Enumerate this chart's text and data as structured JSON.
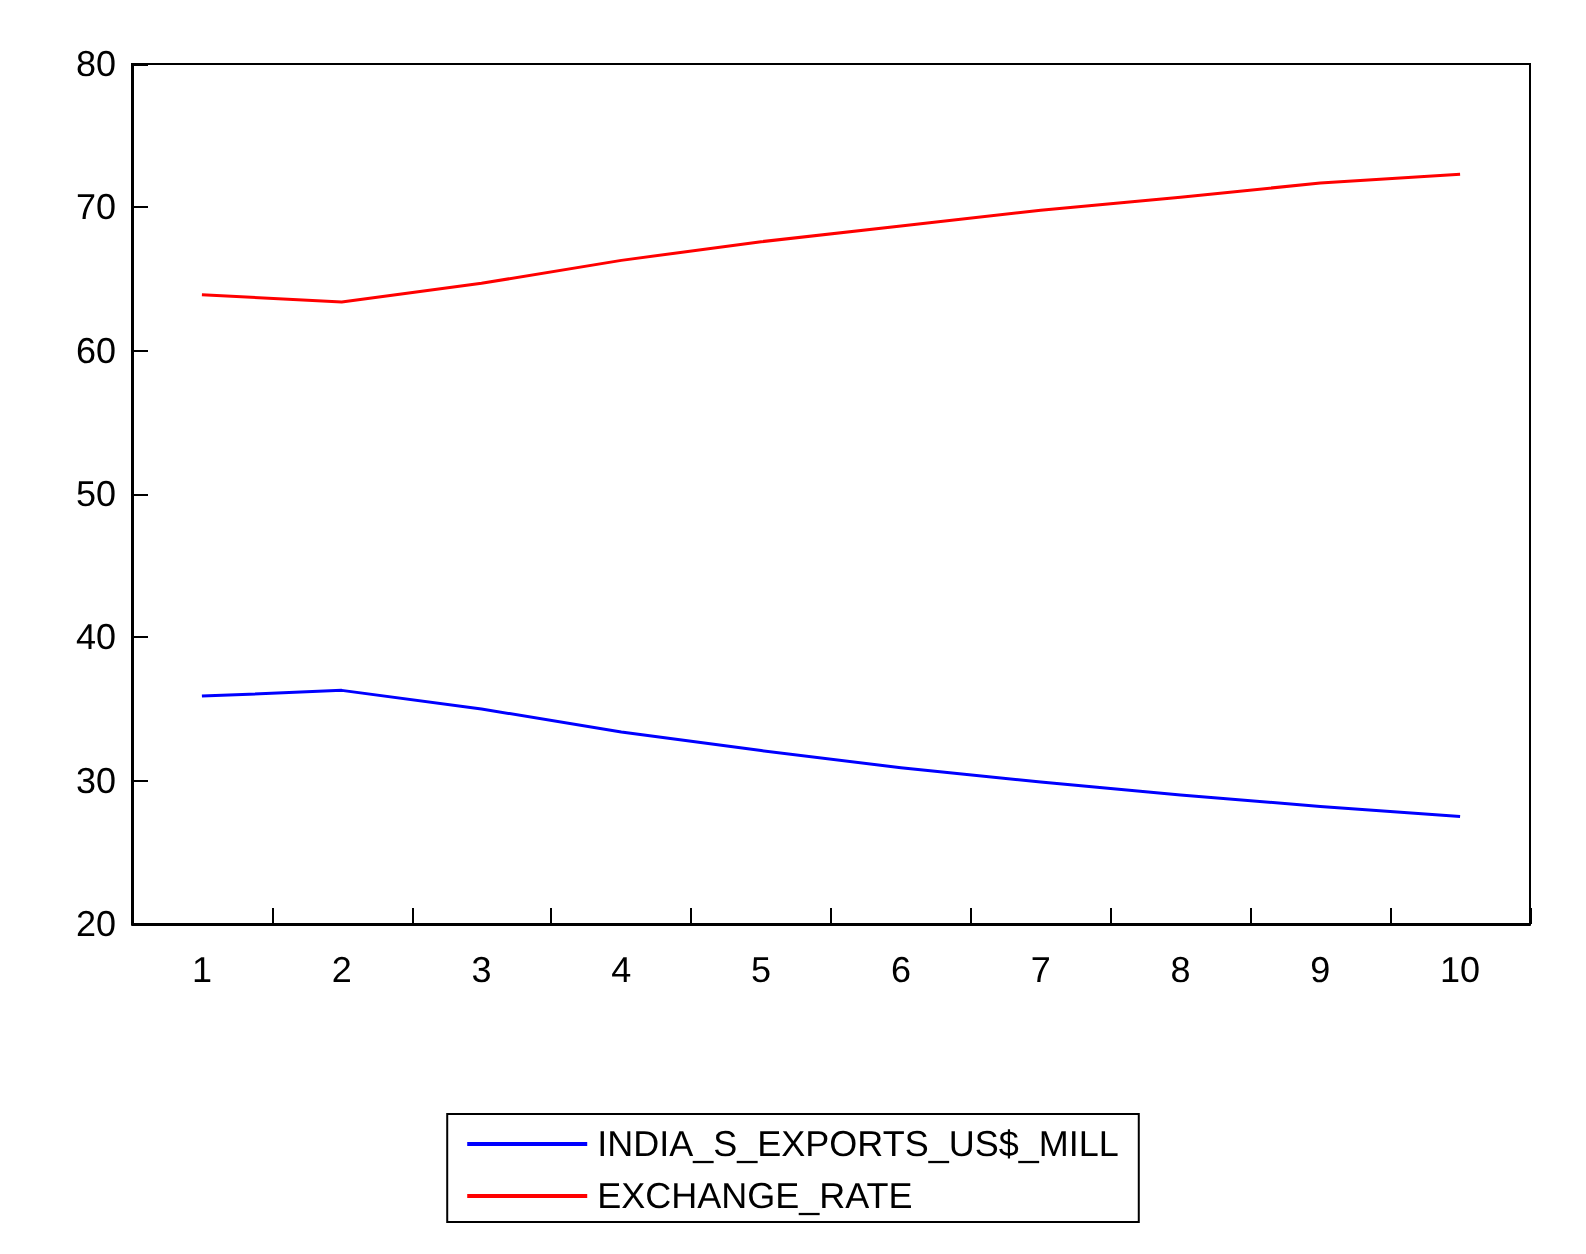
{
  "chart_data": {
    "type": "line",
    "categories": [
      "1",
      "2",
      "3",
      "4",
      "5",
      "6",
      "7",
      "8",
      "9",
      "10"
    ],
    "series": [
      {
        "name": "INDIA_S_EXPORTS_US$_MILL",
        "color": "#0000ff",
        "values": [
          35.9,
          36.3,
          35.0,
          33.4,
          32.1,
          30.9,
          29.9,
          29.0,
          28.2,
          27.5
        ]
      },
      {
        "name": "EXCHANGE_RATE",
        "color": "#ff0000",
        "values": [
          63.9,
          63.4,
          64.7,
          66.3,
          67.6,
          68.7,
          69.8,
          70.7,
          71.7,
          72.3
        ]
      }
    ],
    "ylim": [
      20,
      80
    ],
    "yticks": [
      20,
      30,
      40,
      50,
      60,
      70,
      80
    ],
    "grid": false,
    "legend": "bottom",
    "marker": "none",
    "line_style": "solid"
  }
}
